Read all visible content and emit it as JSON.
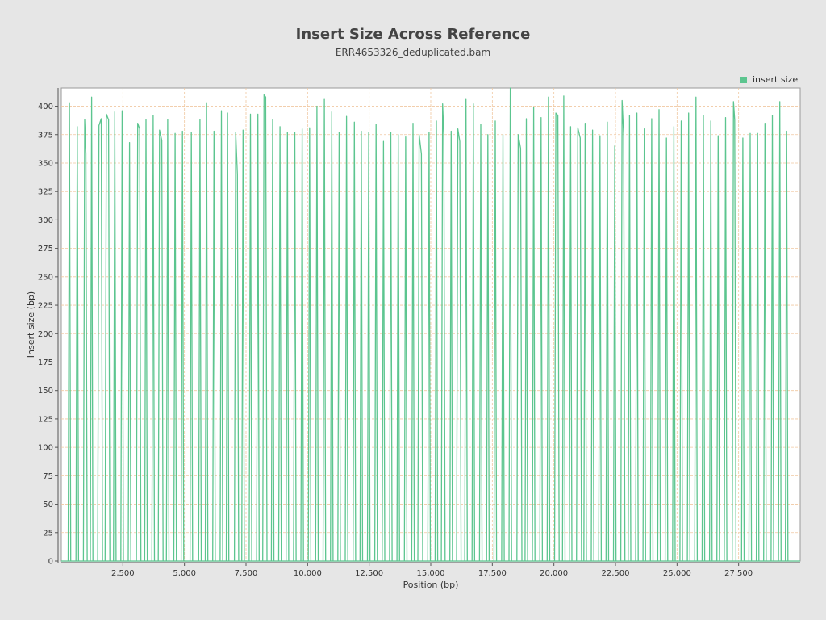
{
  "chart_data": {
    "type": "line",
    "title": "Insert Size Across Reference",
    "subtitle": "ERR4653326_deduplicated.bam",
    "xlabel": "Position (bp)",
    "ylabel": "Insert size (bp)",
    "xlim": [
      0,
      30000
    ],
    "ylim": [
      0,
      416
    ],
    "x_ticks": [
      2500,
      5000,
      7500,
      10000,
      12500,
      15000,
      17500,
      20000,
      22500,
      25000,
      27500
    ],
    "x_tick_labels": [
      "2,500",
      "5,000",
      "7,500",
      "10,000",
      "12,500",
      "15,000",
      "17,500",
      "20,000",
      "22,500",
      "25,000",
      "27,500"
    ],
    "y_ticks": [
      0,
      25,
      50,
      75,
      100,
      125,
      150,
      175,
      200,
      225,
      250,
      275,
      300,
      325,
      350,
      375,
      400
    ],
    "y_tick_labels": [
      "0",
      "25",
      "50",
      "75",
      "100",
      "125",
      "150",
      "175",
      "200",
      "225",
      "250",
      "275",
      "300",
      "325",
      "350",
      "375",
      "400"
    ],
    "grid": true,
    "legend_position": "top-right",
    "series": [
      {
        "name": "insert size",
        "color": "#5cc58f",
        "peaks": [
          [
            [
              330,
              403
            ]
          ],
          [
            [
              650,
              382
            ]
          ],
          [
            [
              950,
              388
            ],
            [
              1000,
              358
            ]
          ],
          [
            [
              1230,
              408
            ]
          ],
          [
            [
              1530,
              383
            ],
            [
              1620,
              389
            ]
          ],
          [
            [
              1830,
              393
            ],
            [
              1920,
              388
            ]
          ],
          [
            [
              2170,
              395
            ]
          ],
          [
            [
              2470,
              396
            ]
          ],
          [
            [
              2770,
              368
            ]
          ],
          [
            [
              3100,
              385
            ],
            [
              3180,
              380
            ]
          ],
          [
            [
              3440,
              388
            ]
          ],
          [
            [
              3730,
              392
            ]
          ],
          [
            [
              3990,
              379
            ],
            [
              4080,
              370
            ]
          ],
          [
            [
              4320,
              388
            ]
          ],
          [
            [
              4620,
              376
            ]
          ],
          [
            [
              4920,
              378
            ]
          ],
          [
            [
              5280,
              377
            ]
          ],
          [
            [
              5630,
              388
            ]
          ],
          [
            [
              5900,
              403
            ]
          ],
          [
            [
              6200,
              378
            ]
          ],
          [
            [
              6500,
              396
            ]
          ],
          [
            [
              6750,
              394
            ]
          ],
          [
            [
              7080,
              377
            ],
            [
              7150,
              340
            ]
          ],
          [
            [
              7380,
              379
            ]
          ],
          [
            [
              7680,
              393
            ]
          ],
          [
            [
              7980,
              393
            ]
          ],
          [
            [
              8230,
              410
            ],
            [
              8300,
              408
            ]
          ],
          [
            [
              8580,
              388
            ]
          ],
          [
            [
              8880,
              382
            ]
          ],
          [
            [
              9180,
              377
            ]
          ],
          [
            [
              9480,
              377
            ]
          ],
          [
            [
              9780,
              380
            ]
          ],
          [
            [
              10080,
              381
            ]
          ],
          [
            [
              10380,
              400
            ]
          ],
          [
            [
              10680,
              406
            ]
          ],
          [
            [
              10980,
              395
            ]
          ],
          [
            [
              11280,
              377
            ]
          ],
          [
            [
              11580,
              391
            ]
          ],
          [
            [
              11900,
              386
            ]
          ],
          [
            [
              12180,
              378
            ]
          ],
          [
            [
              12480,
              377
            ]
          ],
          [
            [
              12780,
              384
            ]
          ],
          [
            [
              13080,
              369
            ]
          ],
          [
            [
              13380,
              377
            ]
          ],
          [
            [
              13680,
              375
            ]
          ],
          [
            [
              13980,
              373
            ]
          ],
          [
            [
              14280,
              385
            ]
          ],
          [
            [
              14530,
              375
            ],
            [
              14620,
              358
            ]
          ],
          [
            [
              14930,
              377
            ]
          ],
          [
            [
              15230,
              387
            ]
          ],
          [
            [
              15480,
              402
            ],
            [
              15530,
              375
            ]
          ],
          [
            [
              15830,
              378
            ]
          ],
          [
            [
              16100,
              380
            ],
            [
              16180,
              369
            ]
          ],
          [
            [
              16430,
              406
            ]
          ],
          [
            [
              16730,
              402
            ]
          ],
          [
            [
              17030,
              384
            ]
          ],
          [
            [
              17320,
              375
            ]
          ],
          [
            [
              17620,
              387
            ]
          ],
          [
            [
              17930,
              375
            ]
          ],
          [
            [
              18230,
              416
            ]
          ],
          [
            [
              18550,
              375
            ],
            [
              18650,
              363
            ]
          ],
          [
            [
              18880,
              389
            ]
          ],
          [
            [
              19180,
              399
            ]
          ],
          [
            [
              19480,
              390
            ]
          ],
          [
            [
              19780,
              408
            ]
          ],
          [
            [
              20080,
              394
            ],
            [
              20160,
              392
            ]
          ],
          [
            [
              20400,
              409
            ]
          ],
          [
            [
              20680,
              382
            ]
          ],
          [
            [
              20970,
              381
            ],
            [
              21070,
              372
            ]
          ],
          [
            [
              21270,
              385
            ]
          ],
          [
            [
              21570,
              379
            ]
          ],
          [
            [
              21870,
              374
            ]
          ],
          [
            [
              22170,
              386
            ]
          ],
          [
            [
              22470,
              365
            ]
          ],
          [
            [
              22770,
              405
            ],
            [
              22830,
              375
            ]
          ],
          [
            [
              23070,
              392
            ]
          ],
          [
            [
              23370,
              394
            ]
          ],
          [
            [
              23670,
              380
            ]
          ],
          [
            [
              23970,
              389
            ]
          ],
          [
            [
              24270,
              397
            ]
          ],
          [
            [
              24570,
              372
            ]
          ],
          [
            [
              24870,
              382
            ]
          ],
          [
            [
              25170,
              387
            ]
          ],
          [
            [
              25470,
              394
            ]
          ],
          [
            [
              25770,
              408
            ]
          ],
          [
            [
              26070,
              392
            ]
          ],
          [
            [
              26370,
              387
            ]
          ],
          [
            [
              26670,
              374
            ]
          ],
          [
            [
              26970,
              390
            ]
          ],
          [
            [
              27290,
              404
            ],
            [
              27340,
              388
            ]
          ],
          [
            [
              27670,
              372
            ]
          ],
          [
            [
              27970,
              376
            ]
          ],
          [
            [
              28270,
              376
            ]
          ],
          [
            [
              28570,
              385
            ]
          ],
          [
            [
              28870,
              392
            ]
          ],
          [
            [
              29170,
              404
            ]
          ],
          [
            [
              29450,
              378
            ]
          ]
        ]
      }
    ]
  }
}
